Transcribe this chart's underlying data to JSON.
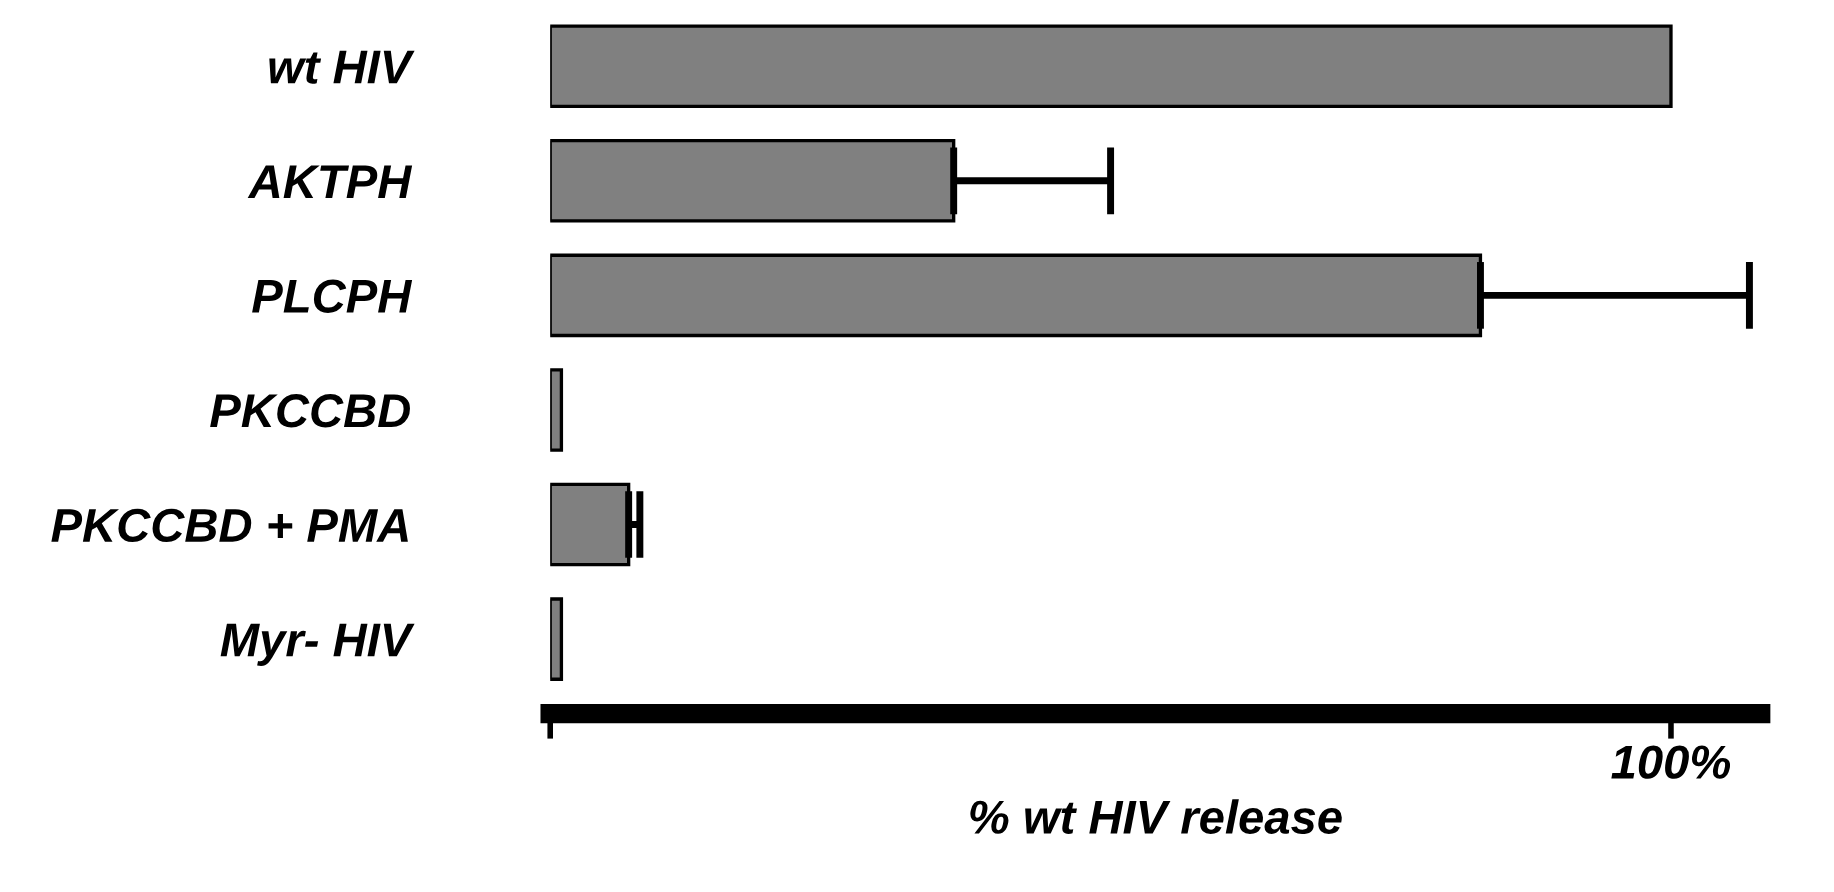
{
  "chart_data": {
    "type": "bar",
    "orientation": "horizontal",
    "categories": [
      "wt HIV",
      "AKTPH",
      "PLCPH",
      "PKCCBD",
      "PKCCBD + PMA",
      "Myr- HIV"
    ],
    "values": [
      100,
      36,
      83,
      1,
      7,
      1
    ],
    "errors": [
      null,
      14,
      24,
      null,
      1,
      null
    ],
    "color": "#808080",
    "xlim": [
      0,
      108
    ],
    "xticks": [
      {
        "value": 0,
        "label": null
      },
      {
        "value": 100,
        "label": "100%"
      }
    ],
    "xlabel": "% wt HIV release"
  }
}
